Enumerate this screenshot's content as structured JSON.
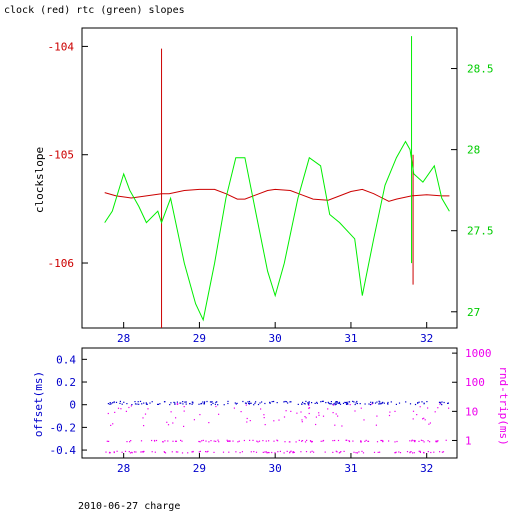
{
  "title": "clock (red) rtc (green) slopes",
  "footer": "2010-06-27 charge",
  "colors": {
    "clock": "#cc0000",
    "rtc": "#00ee00",
    "offset": "#0000cc",
    "rtt": "#ee00ee",
    "axis": "#000000"
  },
  "chart_data": [
    {
      "type": "line",
      "title": "clock (red) rtc (green) slopes",
      "xlabel": "",
      "ylabel": "clockslope",
      "y2label": "",
      "xlim": [
        27.45,
        32.4
      ],
      "ylim": [
        -106.6,
        -103.83
      ],
      "y2lim": [
        26.9,
        28.75
      ],
      "x_ticks": [
        "28",
        "29",
        "30",
        "31",
        "32"
      ],
      "y_ticks": [
        "-104",
        "-105",
        "-106"
      ],
      "y2_ticks": [
        "27",
        "27.5",
        "28",
        "28.5"
      ],
      "grid": false,
      "series": [
        {
          "name": "clock",
          "axis": "left",
          "x": [
            27.75,
            27.9,
            28.1,
            28.3,
            28.5,
            28.6,
            28.8,
            29.0,
            29.2,
            29.35,
            29.5,
            29.6,
            29.75,
            29.9,
            30.0,
            30.2,
            30.35,
            30.5,
            30.7,
            30.85,
            31.0,
            31.15,
            31.3,
            31.5,
            31.6,
            31.8,
            32.0,
            32.2,
            32.3
          ],
          "y": [
            -105.35,
            -105.38,
            -105.4,
            -105.38,
            -105.36,
            -105.36,
            -105.33,
            -105.32,
            -105.32,
            -105.36,
            -105.41,
            -105.41,
            -105.37,
            -105.33,
            -105.32,
            -105.33,
            -105.37,
            -105.41,
            -105.42,
            -105.38,
            -105.34,
            -105.32,
            -105.36,
            -105.43,
            -105.41,
            -105.38,
            -105.37,
            -105.38,
            -105.38
          ],
          "spikes": [
            {
              "x": 28.5,
              "ymin": -106.6,
              "ymax": -104.02
            },
            {
              "x": 31.82,
              "ymin": -106.2,
              "ymax": -105.0
            }
          ]
        },
        {
          "name": "rtc",
          "axis": "right",
          "x": [
            27.75,
            27.85,
            28.0,
            28.08,
            28.2,
            28.3,
            28.45,
            28.5,
            28.62,
            28.8,
            28.95,
            29.05,
            29.2,
            29.35,
            29.48,
            29.6,
            29.75,
            29.9,
            30.0,
            30.12,
            30.3,
            30.45,
            30.6,
            30.72,
            30.85,
            31.05,
            31.15,
            31.3,
            31.45,
            31.6,
            31.72,
            31.78,
            31.83,
            31.95,
            32.1,
            32.2,
            32.3
          ],
          "y": [
            27.55,
            27.62,
            27.85,
            27.75,
            27.65,
            27.55,
            27.62,
            27.55,
            27.7,
            27.3,
            27.05,
            26.95,
            27.3,
            27.7,
            27.95,
            27.95,
            27.6,
            27.25,
            27.1,
            27.3,
            27.7,
            27.95,
            27.9,
            27.6,
            27.55,
            27.45,
            27.1,
            27.45,
            27.78,
            27.95,
            28.05,
            28.0,
            27.85,
            27.8,
            27.9,
            27.7,
            27.62
          ],
          "spikes": [
            {
              "x": 31.8,
              "ymin": 27.3,
              "ymax": 28.7
            }
          ]
        }
      ]
    },
    {
      "type": "scatter",
      "xlabel": "",
      "ylabel": "offset(ms)",
      "y2label": "rnd-trip(ms)",
      "xlim": [
        27.45,
        32.4
      ],
      "ylim": [
        -0.47,
        0.5
      ],
      "y2lim": [
        0.25,
        1500
      ],
      "y2scale": "log",
      "x_ticks": [
        "28",
        "29",
        "30",
        "31",
        "32"
      ],
      "y_ticks": [
        "0.4",
        "0.2",
        "0",
        "-0.2",
        "-0.4"
      ],
      "y2_ticks": [
        "1000",
        "100",
        "10",
        "1"
      ],
      "grid": false,
      "series": [
        {
          "name": "offset",
          "axis": "left",
          "level": 0.02,
          "spread": 0.015
        },
        {
          "name": "rtt",
          "axis": "right",
          "levels": [
            1.0,
            0.42,
            8
          ]
        }
      ]
    }
  ]
}
